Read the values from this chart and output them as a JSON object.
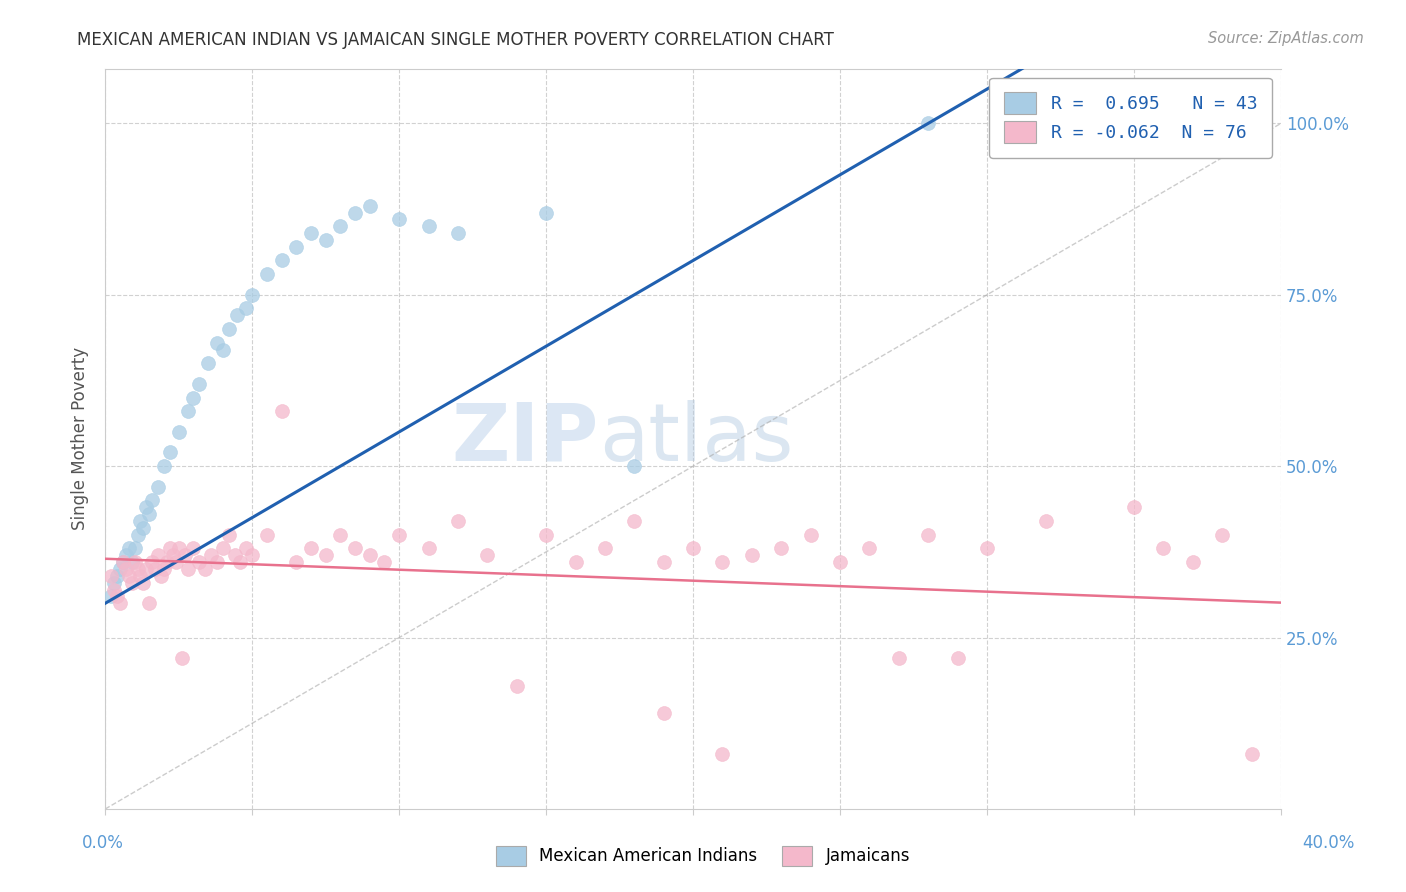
{
  "title": "MEXICAN AMERICAN INDIAN VS JAMAICAN SINGLE MOTHER POVERTY CORRELATION CHART",
  "source": "Source: ZipAtlas.com",
  "ylabel": "Single Mother Poverty",
  "ytick_vals": [
    0.25,
    0.5,
    0.75,
    1.0
  ],
  "xlim": [
    0.0,
    0.4
  ],
  "ylim": [
    0.0,
    1.08
  ],
  "r_blue": 0.695,
  "n_blue": 43,
  "r_pink": -0.062,
  "n_pink": 76,
  "legend_label_blue": "Mexican American Indians",
  "legend_label_pink": "Jamaicans",
  "blue_color": "#a8cce4",
  "pink_color": "#f4b8cb",
  "blue_trend_color": "#2060b0",
  "pink_trend_color": "#e8718d",
  "watermark_zip": "ZIP",
  "watermark_atlas": "atlas",
  "background_color": "#ffffff",
  "blue_scatter_x": [
    0.002,
    0.003,
    0.004,
    0.005,
    0.006,
    0.007,
    0.008,
    0.009,
    0.01,
    0.011,
    0.012,
    0.013,
    0.014,
    0.015,
    0.016,
    0.018,
    0.02,
    0.022,
    0.025,
    0.028,
    0.03,
    0.032,
    0.035,
    0.038,
    0.04,
    0.042,
    0.045,
    0.048,
    0.05,
    0.055,
    0.06,
    0.065,
    0.07,
    0.075,
    0.08,
    0.085,
    0.09,
    0.1,
    0.11,
    0.12,
    0.15,
    0.18,
    0.28
  ],
  "blue_scatter_y": [
    0.31,
    0.33,
    0.34,
    0.35,
    0.36,
    0.37,
    0.38,
    0.36,
    0.38,
    0.4,
    0.42,
    0.41,
    0.44,
    0.43,
    0.45,
    0.47,
    0.5,
    0.52,
    0.55,
    0.58,
    0.6,
    0.62,
    0.65,
    0.68,
    0.67,
    0.7,
    0.72,
    0.73,
    0.75,
    0.78,
    0.8,
    0.82,
    0.84,
    0.83,
    0.85,
    0.87,
    0.88,
    0.86,
    0.85,
    0.84,
    0.87,
    0.5,
    1.0
  ],
  "pink_scatter_x": [
    0.002,
    0.003,
    0.004,
    0.005,
    0.006,
    0.007,
    0.008,
    0.009,
    0.01,
    0.011,
    0.012,
    0.013,
    0.014,
    0.015,
    0.016,
    0.017,
    0.018,
    0.019,
    0.02,
    0.021,
    0.022,
    0.023,
    0.024,
    0.025,
    0.026,
    0.027,
    0.028,
    0.03,
    0.032,
    0.034,
    0.036,
    0.038,
    0.04,
    0.042,
    0.044,
    0.046,
    0.048,
    0.05,
    0.055,
    0.06,
    0.065,
    0.07,
    0.075,
    0.08,
    0.085,
    0.09,
    0.095,
    0.1,
    0.11,
    0.12,
    0.13,
    0.14,
    0.15,
    0.16,
    0.17,
    0.18,
    0.19,
    0.2,
    0.21,
    0.22,
    0.23,
    0.24,
    0.25,
    0.26,
    0.27,
    0.28,
    0.29,
    0.3,
    0.32,
    0.35,
    0.36,
    0.37,
    0.38,
    0.39,
    0.19,
    0.21
  ],
  "pink_scatter_y": [
    0.34,
    0.32,
    0.31,
    0.3,
    0.36,
    0.35,
    0.34,
    0.33,
    0.36,
    0.35,
    0.34,
    0.33,
    0.35,
    0.3,
    0.36,
    0.35,
    0.37,
    0.34,
    0.35,
    0.36,
    0.38,
    0.37,
    0.36,
    0.38,
    0.22,
    0.37,
    0.35,
    0.38,
    0.36,
    0.35,
    0.37,
    0.36,
    0.38,
    0.4,
    0.37,
    0.36,
    0.38,
    0.37,
    0.4,
    0.58,
    0.36,
    0.38,
    0.37,
    0.4,
    0.38,
    0.37,
    0.36,
    0.4,
    0.38,
    0.42,
    0.37,
    0.18,
    0.4,
    0.36,
    0.38,
    0.42,
    0.36,
    0.38,
    0.36,
    0.37,
    0.38,
    0.4,
    0.36,
    0.38,
    0.22,
    0.4,
    0.22,
    0.38,
    0.42,
    0.44,
    0.38,
    0.36,
    0.4,
    0.08,
    0.14,
    0.08
  ]
}
